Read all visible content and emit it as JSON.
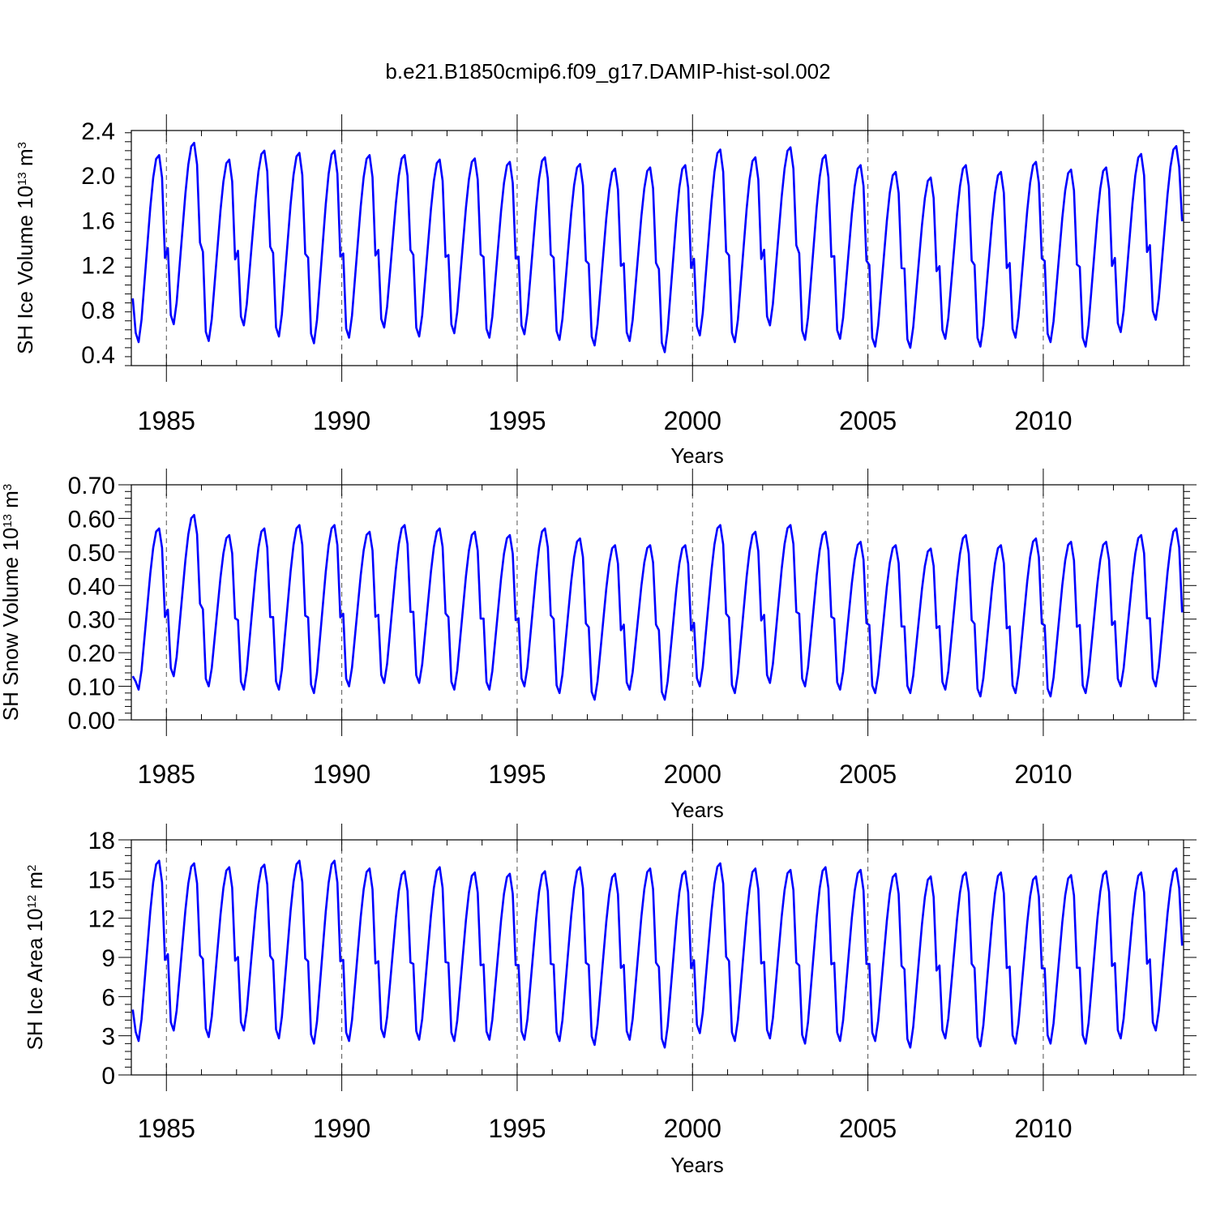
{
  "title": "b.e21.B1850cmip6.f09_g17.DAMIP-hist-sol.002",
  "line_color": "#0000ff",
  "chart_data": [
    {
      "type": "line",
      "ylabel": "SH Ice Volume 10",
      "ylabel_exp": "13",
      "ylabel_unit": " m",
      "ylabel_unit_exp": "3",
      "xlabel": "Years",
      "xlim": [
        1984.0,
        2014.0
      ],
      "ylim": [
        0.3,
        2.4
      ],
      "yticks": [
        0.4,
        0.8,
        1.2,
        1.6,
        2.0,
        2.4
      ],
      "ytick_labels": [
        "0.4",
        "0.8",
        "1.2",
        "1.6",
        "2.0",
        "2.4"
      ],
      "xticks": [
        1985,
        1990,
        1995,
        2000,
        2005,
        2010
      ],
      "xtick_labels": [
        "1985",
        "1990",
        "1995",
        "2000",
        "2005",
        "2010"
      ],
      "grid": "vertical dashed at labeled years",
      "series": [
        {
          "x_start": 1984.0417,
          "x_step": 0.08333,
          "maxima": [
            2.18,
            2.29,
            2.14,
            2.22,
            2.2,
            2.22,
            2.18,
            2.18,
            2.14,
            2.15,
            2.12,
            2.16,
            2.1,
            2.06,
            2.07,
            2.09,
            2.23,
            2.16,
            2.25,
            2.18,
            2.09,
            2.03,
            1.98,
            2.09,
            2.03,
            2.12,
            2.05,
            2.07,
            2.19,
            2.26
          ],
          "minima": [
            0.51,
            0.67,
            0.52,
            0.66,
            0.56,
            0.5,
            0.55,
            0.64,
            0.56,
            0.59,
            0.55,
            0.58,
            0.53,
            0.48,
            0.52,
            0.42,
            0.57,
            0.51,
            0.66,
            0.53,
            0.54,
            0.47,
            0.46,
            0.54,
            0.47,
            0.55,
            0.51,
            0.47,
            0.6,
            0.71
          ],
          "first_value": 0.9,
          "last_value": 1.59
        }
      ]
    },
    {
      "type": "line",
      "ylabel": "SH Snow Volume 10",
      "ylabel_exp": "13",
      "ylabel_unit": " m",
      "ylabel_unit_exp": "3",
      "xlabel": "Years",
      "xlim": [
        1984.0,
        2014.0
      ],
      "ylim": [
        0.0,
        0.7
      ],
      "yticks": [
        0.0,
        0.1,
        0.2,
        0.3,
        0.4,
        0.5,
        0.6,
        0.7
      ],
      "ytick_labels": [
        "0.00",
        "0.10",
        "0.20",
        "0.30",
        "0.40",
        "0.50",
        "0.60",
        "0.70"
      ],
      "xticks": [
        1985,
        1990,
        1995,
        2000,
        2005,
        2010
      ],
      "xtick_labels": [
        "1985",
        "1990",
        "1995",
        "2000",
        "2005",
        "2010"
      ],
      "grid": "vertical dashed at labeled years",
      "series": [
        {
          "x_start": 1984.0417,
          "x_step": 0.08333,
          "maxima": [
            0.57,
            0.61,
            0.55,
            0.57,
            0.58,
            0.58,
            0.56,
            0.58,
            0.57,
            0.56,
            0.55,
            0.57,
            0.54,
            0.52,
            0.52,
            0.52,
            0.58,
            0.56,
            0.58,
            0.56,
            0.53,
            0.52,
            0.51,
            0.55,
            0.52,
            0.54,
            0.53,
            0.53,
            0.55,
            0.57
          ],
          "minima": [
            0.09,
            0.13,
            0.1,
            0.09,
            0.09,
            0.08,
            0.1,
            0.11,
            0.11,
            0.09,
            0.09,
            0.1,
            0.08,
            0.06,
            0.09,
            0.06,
            0.1,
            0.08,
            0.11,
            0.1,
            0.09,
            0.08,
            0.08,
            0.09,
            0.07,
            0.08,
            0.07,
            0.08,
            0.1,
            0.1
          ],
          "first_value": 0.13,
          "last_value": 0.32
        }
      ]
    },
    {
      "type": "line",
      "ylabel": "SH Ice Area 10",
      "ylabel_exp": "12",
      "ylabel_unit": " m",
      "ylabel_unit_exp": "2",
      "xlabel": "Years",
      "xlim": [
        1984.0,
        2014.0
      ],
      "ylim": [
        0,
        18
      ],
      "yticks": [
        0,
        3,
        6,
        9,
        12,
        15,
        18
      ],
      "ytick_labels": [
        "0",
        "3",
        "6",
        "9",
        "12",
        "15",
        "18"
      ],
      "xticks": [
        1985,
        1990,
        1995,
        2000,
        2005,
        2010
      ],
      "xtick_labels": [
        "1985",
        "1990",
        "1995",
        "2000",
        "2005",
        "2010"
      ],
      "grid": "vertical dashed at labeled years",
      "series": [
        {
          "x_start": 1984.0417,
          "x_step": 0.08333,
          "maxima": [
            16.4,
            16.2,
            15.9,
            16.1,
            16.4,
            16.4,
            15.8,
            15.6,
            15.9,
            15.5,
            15.4,
            15.6,
            15.9,
            15.4,
            15.8,
            15.6,
            16.2,
            15.8,
            15.7,
            15.9,
            15.7,
            15.4,
            15.2,
            15.5,
            15.5,
            15.2,
            15.3,
            15.6,
            15.5,
            15.8
          ],
          "minima": [
            2.6,
            3.4,
            2.9,
            3.4,
            2.8,
            2.4,
            2.6,
            2.9,
            2.7,
            2.6,
            2.7,
            2.7,
            2.6,
            2.3,
            2.7,
            2.1,
            3.2,
            2.6,
            2.8,
            2.4,
            2.6,
            2.6,
            2.1,
            2.8,
            2.2,
            2.4,
            2.4,
            2.4,
            2.8,
            3.4
          ],
          "first_value": 5.0,
          "last_value": 9.9
        }
      ]
    }
  ]
}
